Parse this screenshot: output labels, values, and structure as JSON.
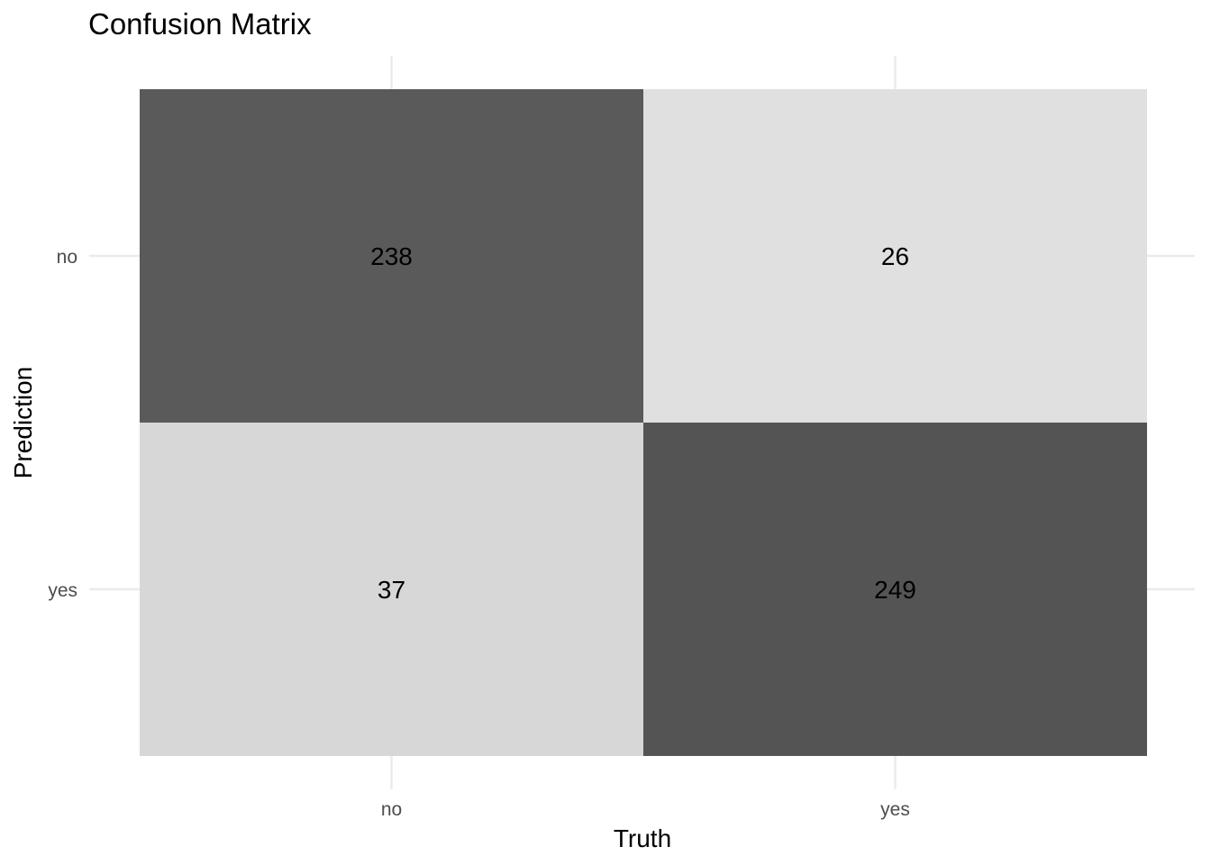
{
  "chart_data": {
    "type": "heatmap",
    "title": "Confusion Matrix",
    "xlabel": "Truth",
    "ylabel": "Prediction",
    "x_categories": [
      "no",
      "yes"
    ],
    "y_categories": [
      "no",
      "yes"
    ],
    "cells": [
      {
        "truth": "no",
        "prediction": "no",
        "value": 238,
        "color": "#5a5a5a"
      },
      {
        "truth": "yes",
        "prediction": "no",
        "value": 26,
        "color": "#e0e0e0"
      },
      {
        "truth": "no",
        "prediction": "yes",
        "value": 37,
        "color": "#d7d7d7"
      },
      {
        "truth": "yes",
        "prediction": "yes",
        "value": 249,
        "color": "#545454"
      }
    ],
    "grid": true,
    "legend": "none"
  }
}
